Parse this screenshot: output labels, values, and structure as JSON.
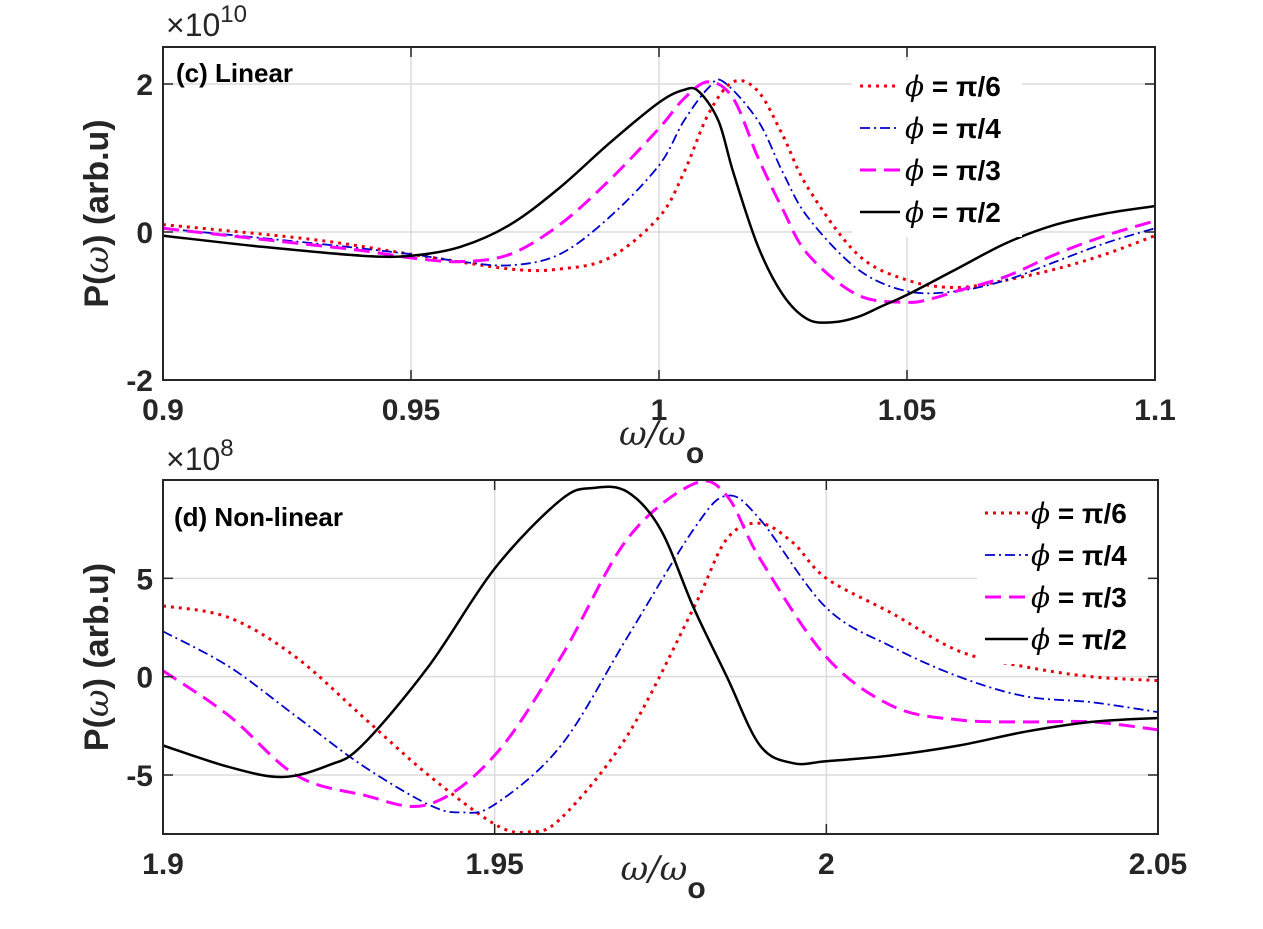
{
  "chart_data": [
    {
      "type": "line",
      "title": "(c) Linear",
      "xlabel": "ω/ω",
      "xlabel_sub": "o",
      "ylabel_prefix": "P(",
      "ylabel_var": "ω",
      "ylabel_suffix": ") (arb.u)",
      "y_multiplier_base": "×10",
      "y_multiplier_exp": "10",
      "xlim": [
        0.9,
        1.1
      ],
      "ylim": [
        -2,
        2.5
      ],
      "xticks": [
        0.9,
        0.95,
        1,
        1.05,
        1.1
      ],
      "xtick_labels": [
        "0.9",
        "0.95",
        "1",
        "1.05",
        "1.1"
      ],
      "yticks": [
        -2,
        0,
        2
      ],
      "ytick_labels": [
        "-2",
        "0",
        "2"
      ],
      "grid": true,
      "legend_position": "top-right",
      "series": [
        {
          "name": "ϕ = π/6",
          "color": "#e8000b",
          "dash": "dotted",
          "x": [
            0.9,
            0.93,
            0.95,
            0.97,
            0.98,
            0.99,
            1.0,
            1.005,
            1.01,
            1.015,
            1.02,
            1.025,
            1.03,
            1.04,
            1.05,
            1.06,
            1.07,
            1.08,
            1.09,
            1.1
          ],
          "y": [
            0.1,
            -0.1,
            -0.3,
            -0.5,
            -0.5,
            -0.35,
            0.2,
            0.8,
            1.6,
            2.03,
            1.9,
            1.3,
            0.6,
            -0.3,
            -0.65,
            -0.75,
            -0.65,
            -0.5,
            -0.3,
            -0.05
          ]
        },
        {
          "name": "ϕ = π/4",
          "color": "#0000cd",
          "dash": "dashdot",
          "x": [
            0.9,
            0.93,
            0.95,
            0.96,
            0.97,
            0.98,
            0.99,
            1.0,
            1.005,
            1.01,
            1.013,
            1.02,
            1.025,
            1.03,
            1.04,
            1.05,
            1.06,
            1.07,
            1.08,
            1.09,
            1.1
          ],
          "y": [
            0.05,
            -0.15,
            -0.3,
            -0.4,
            -0.45,
            -0.3,
            0.2,
            0.9,
            1.5,
            1.95,
            2.03,
            1.5,
            0.8,
            0.2,
            -0.5,
            -0.8,
            -0.8,
            -0.65,
            -0.4,
            -0.15,
            0.05
          ]
        },
        {
          "name": "ϕ = π/3",
          "color": "#ff00ff",
          "dash": "dashed",
          "x": [
            0.9,
            0.92,
            0.94,
            0.95,
            0.96,
            0.97,
            0.98,
            0.99,
            1.0,
            1.005,
            1.01,
            1.015,
            1.02,
            1.025,
            1.03,
            1.04,
            1.05,
            1.055,
            1.06,
            1.07,
            1.08,
            1.09,
            1.1
          ],
          "y": [
            0.05,
            -0.1,
            -0.25,
            -0.35,
            -0.4,
            -0.3,
            0.1,
            0.7,
            1.4,
            1.8,
            2.03,
            1.8,
            1.0,
            0.3,
            -0.3,
            -0.85,
            -0.95,
            -0.9,
            -0.8,
            -0.6,
            -0.3,
            -0.05,
            0.15
          ]
        },
        {
          "name": "ϕ = π/2",
          "color": "#000000",
          "dash": "solid",
          "x": [
            0.9,
            0.92,
            0.94,
            0.95,
            0.96,
            0.97,
            0.98,
            0.99,
            1.0,
            1.005,
            1.008,
            1.012,
            1.015,
            1.02,
            1.025,
            1.03,
            1.035,
            1.04,
            1.045,
            1.05,
            1.06,
            1.07,
            1.08,
            1.09,
            1.1
          ],
          "y": [
            -0.05,
            -0.2,
            -0.32,
            -0.32,
            -0.2,
            0.1,
            0.6,
            1.2,
            1.75,
            1.92,
            1.9,
            1.5,
            0.8,
            -0.2,
            -0.85,
            -1.18,
            -1.22,
            -1.15,
            -1.0,
            -0.85,
            -0.5,
            -0.15,
            0.1,
            0.25,
            0.35
          ]
        }
      ]
    },
    {
      "type": "line",
      "title": "(d) Non-linear",
      "xlabel": "ω/ω",
      "xlabel_sub": "o",
      "ylabel_prefix": "P(",
      "ylabel_var": "ω",
      "ylabel_suffix": ") (arb.u)",
      "y_multiplier_base": "×10",
      "y_multiplier_exp": "8",
      "xlim": [
        1.9,
        2.05
      ],
      "ylim": [
        -8,
        10
      ],
      "xticks": [
        1.9,
        1.95,
        2,
        2.05
      ],
      "xtick_labels": [
        "1.9",
        "1.95",
        "2",
        "2.05"
      ],
      "yticks": [
        -5,
        0,
        5
      ],
      "ytick_labels": [
        "-5",
        "0",
        "5"
      ],
      "grid": true,
      "legend_position": "top-right",
      "series": [
        {
          "name": "ϕ = π/6",
          "color": "#e8000b",
          "dash": "dotted",
          "x": [
            1.9,
            1.91,
            1.92,
            1.93,
            1.94,
            1.95,
            1.955,
            1.96,
            1.97,
            1.98,
            1.985,
            1.99,
            1.995,
            2.0,
            2.01,
            2.02,
            2.03,
            2.04,
            2.05
          ],
          "y": [
            3.6,
            3.0,
            1.0,
            -2.0,
            -5.0,
            -7.5,
            -7.9,
            -7.2,
            -3.0,
            3.5,
            7.0,
            7.8,
            6.8,
            5.0,
            3.2,
            1.3,
            0.5,
            0.0,
            -0.2
          ]
        },
        {
          "name": "ϕ = π/4",
          "color": "#0000cd",
          "dash": "dashdot",
          "x": [
            1.9,
            1.91,
            1.92,
            1.93,
            1.94,
            1.945,
            1.95,
            1.96,
            1.97,
            1.98,
            1.985,
            1.99,
            2.0,
            2.01,
            2.02,
            2.03,
            2.04,
            2.05
          ],
          "y": [
            2.3,
            0.5,
            -2.0,
            -4.5,
            -6.5,
            -6.9,
            -6.5,
            -3.5,
            2.0,
            7.5,
            9.2,
            8.0,
            3.5,
            1.5,
            0.0,
            -1.0,
            -1.3,
            -1.8
          ]
        },
        {
          "name": "ϕ = π/3",
          "color": "#ff00ff",
          "dash": "dashed",
          "x": [
            1.9,
            1.91,
            1.92,
            1.93,
            1.94,
            1.95,
            1.96,
            1.97,
            1.98,
            1.985,
            1.99,
            2.0,
            2.01,
            2.02,
            2.03,
            2.04,
            2.05
          ],
          "y": [
            0.3,
            -2.0,
            -5.0,
            -6.0,
            -6.5,
            -4.0,
            1.0,
            7.0,
            9.8,
            9.2,
            6.0,
            1.0,
            -1.5,
            -2.2,
            -2.3,
            -2.3,
            -2.7
          ]
        },
        {
          "name": "ϕ = π/2",
          "color": "#000000",
          "dash": "solid",
          "x": [
            1.9,
            1.91,
            1.918,
            1.925,
            1.93,
            1.94,
            1.95,
            1.96,
            1.965,
            1.97,
            1.975,
            1.98,
            1.985,
            1.99,
            1.995,
            2.0,
            2.01,
            2.02,
            2.03,
            2.04,
            2.05
          ],
          "y": [
            -3.5,
            -4.6,
            -5.1,
            -4.5,
            -3.5,
            0.5,
            5.5,
            9.0,
            9.6,
            9.4,
            7.5,
            3.5,
            0.0,
            -3.5,
            -4.4,
            -4.3,
            -4.0,
            -3.5,
            -2.8,
            -2.3,
            -2.1
          ]
        }
      ]
    }
  ]
}
